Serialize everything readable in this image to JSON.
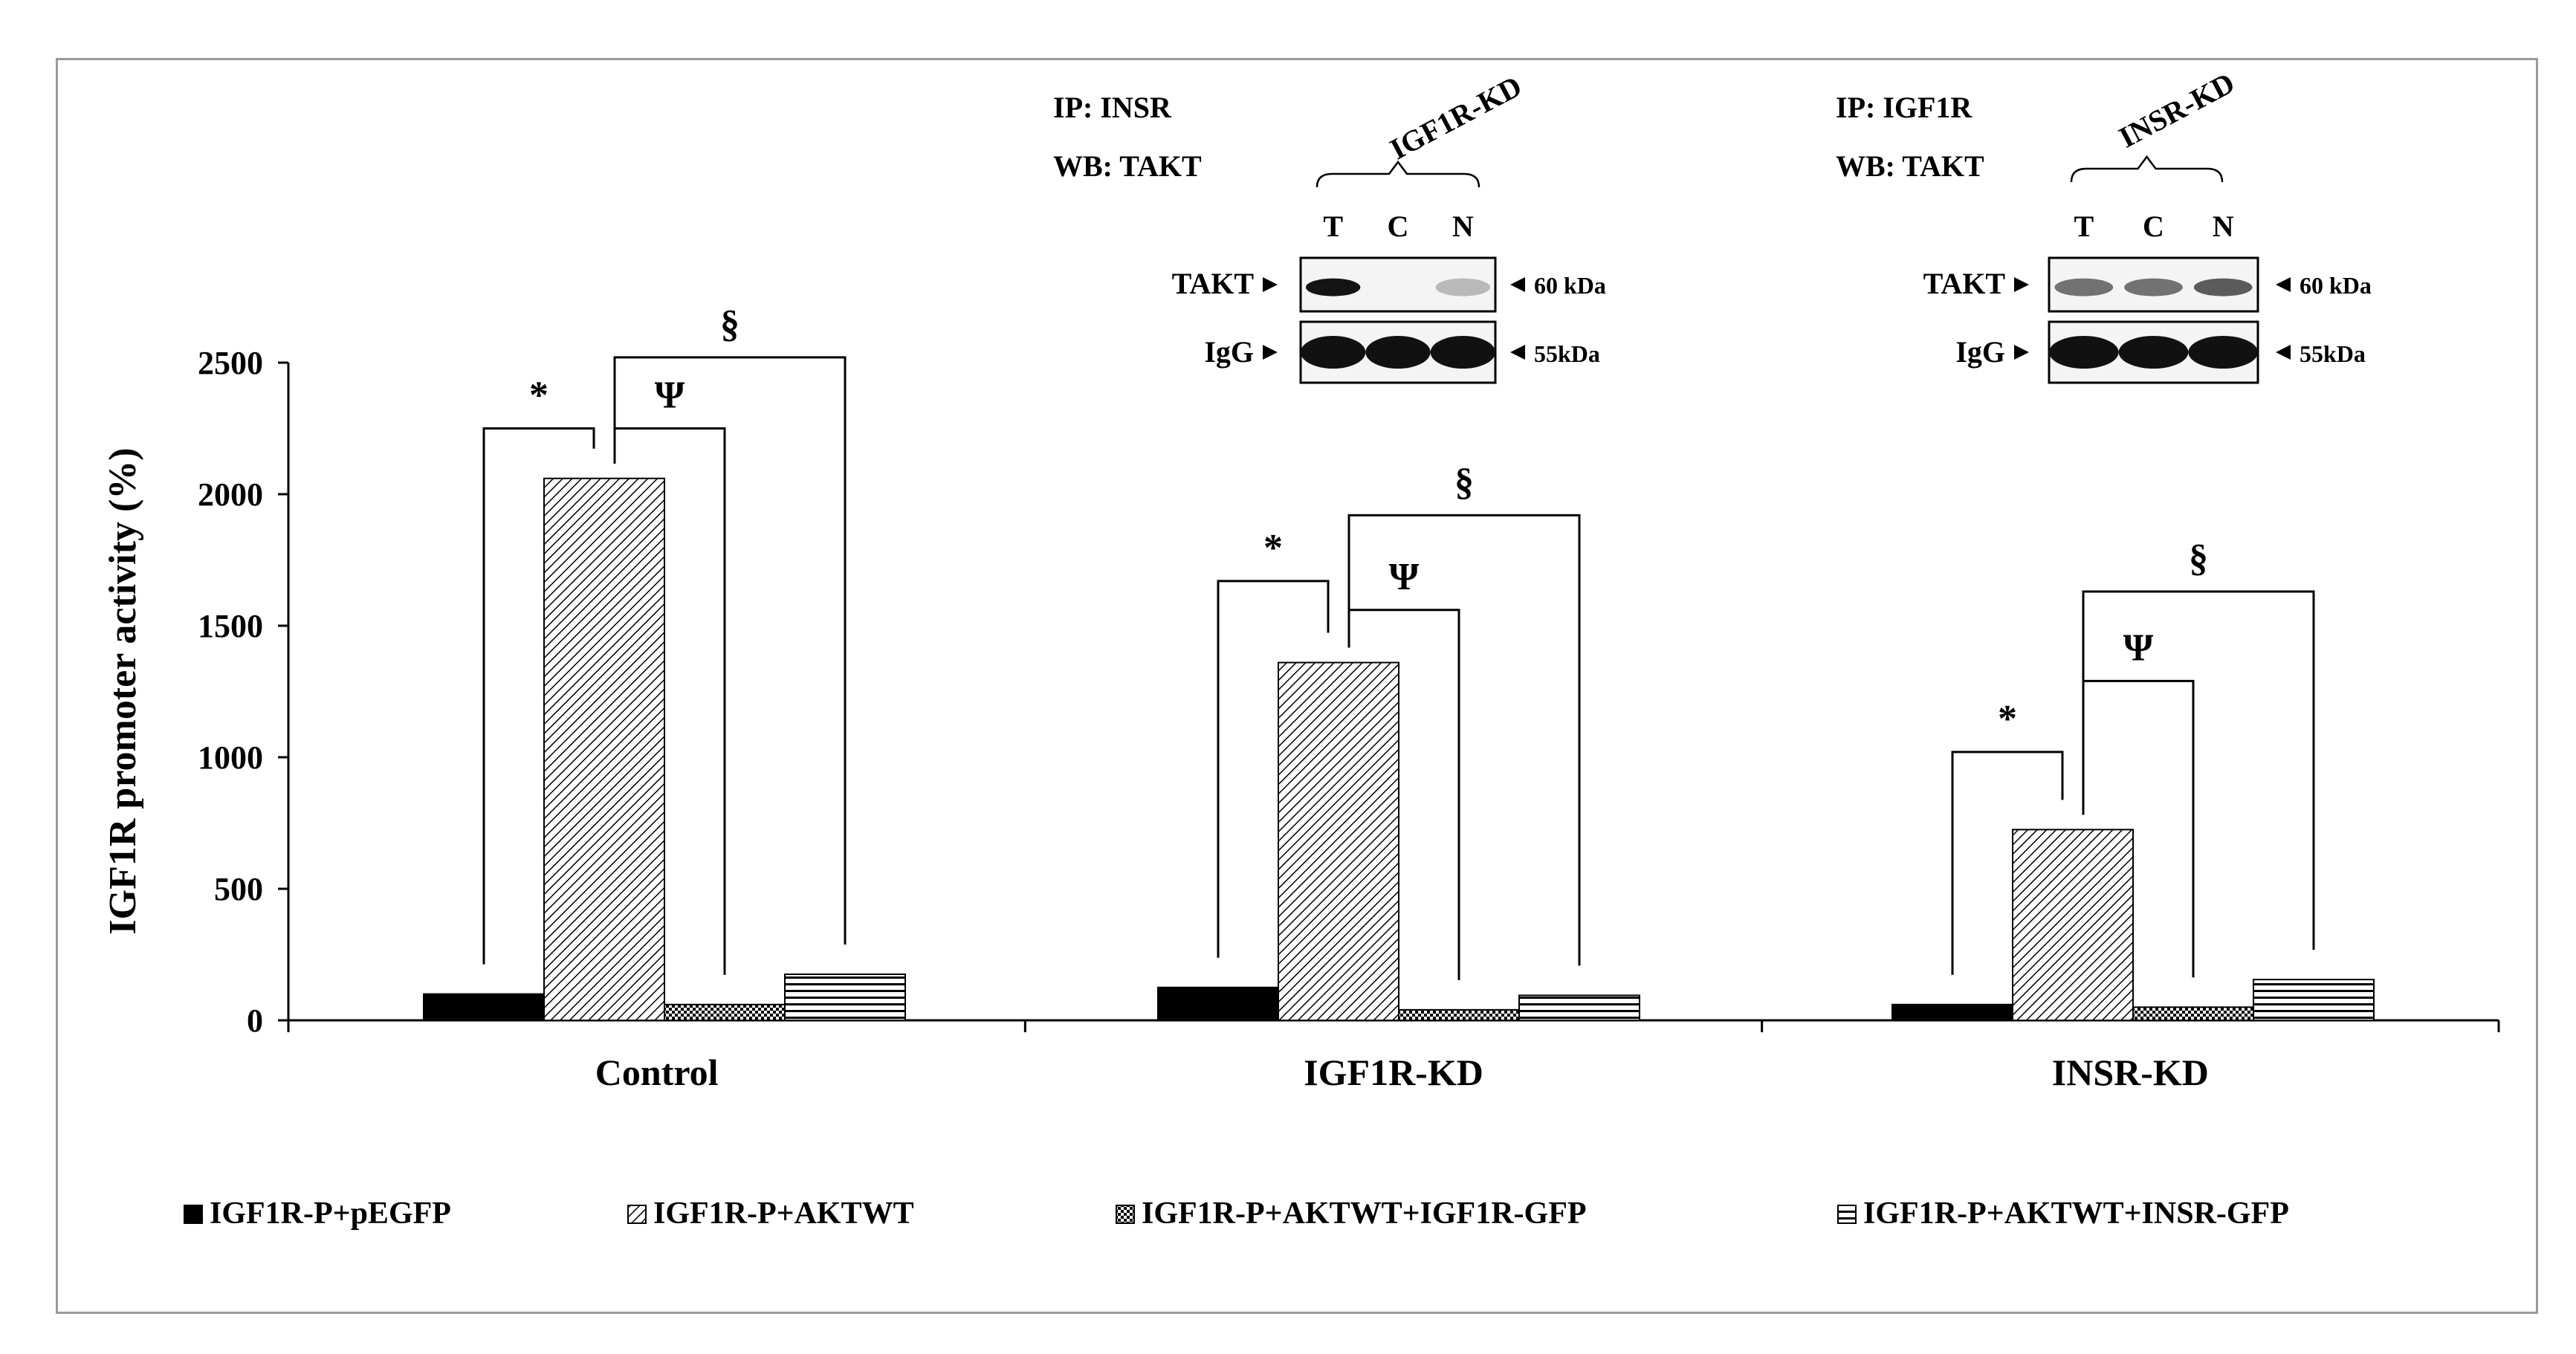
{
  "chart_data": {
    "type": "bar",
    "ylabel": "IGF1R promoter activity (%)",
    "ylim": [
      0,
      2500
    ],
    "yticks": [
      0,
      500,
      1000,
      1500,
      2000,
      2500
    ],
    "categories": [
      "Control",
      "IGF1R-KD",
      "INSR-KD"
    ],
    "series": [
      {
        "name": "IGF1R-P+pEGFP",
        "pattern": "solid",
        "values": [
          100,
          125,
          60
        ]
      },
      {
        "name": "IGF1R-P+AKTWT",
        "pattern": "diagonal",
        "values": [
          2060,
          1360,
          725
        ]
      },
      {
        "name": "IGF1R-P+AKTWT+IGF1R-GFP",
        "pattern": "checker",
        "values": [
          60,
          40,
          50
        ]
      },
      {
        "name": "IGF1R-P+AKTWT+INSR-GFP",
        "pattern": "horizontal",
        "values": [
          175,
          95,
          155
        ]
      }
    ],
    "significance": [
      {
        "group": 0,
        "from": 0,
        "to": 1,
        "symbol": "*",
        "level": 2250
      },
      {
        "group": 0,
        "from": 1,
        "to": 2,
        "symbol": "Ψ",
        "level": 2250
      },
      {
        "group": 0,
        "from": 1,
        "to": 3,
        "symbol": "§",
        "level": 2520
      },
      {
        "group": 1,
        "from": 0,
        "to": 1,
        "symbol": "*",
        "level": 1670
      },
      {
        "group": 1,
        "from": 1,
        "to": 2,
        "symbol": "Ψ",
        "level": 1560
      },
      {
        "group": 1,
        "from": 1,
        "to": 3,
        "symbol": "§",
        "level": 1920
      },
      {
        "group": 2,
        "from": 0,
        "to": 1,
        "symbol": "*",
        "level": 1020
      },
      {
        "group": 2,
        "from": 1,
        "to": 2,
        "symbol": "Ψ",
        "level": 1290
      },
      {
        "group": 2,
        "from": 1,
        "to": 3,
        "symbol": "§",
        "level": 1630
      }
    ]
  },
  "blots": [
    {
      "ip": "IP: INSR",
      "wb": "WB: TAKT",
      "bracket_label": "IGF1R-KD",
      "lanes": [
        "T",
        "C",
        "N"
      ],
      "row1_label": "TAKT",
      "row1_kda": "60 kDa",
      "row2_label": "IgG",
      "row2_kda": "55kDa",
      "takt_intensity": [
        1.0,
        0.0,
        0.3
      ]
    },
    {
      "ip": "IP: IGF1R",
      "wb": "WB: TAKT",
      "bracket_label": "INSR-KD",
      "lanes": [
        "T",
        "C",
        "N"
      ],
      "row1_label": "TAKT",
      "row1_kda": "60 kDa",
      "row2_label": "IgG",
      "row2_kda": "55kDa",
      "takt_intensity": [
        0.6,
        0.6,
        0.7
      ]
    }
  ]
}
